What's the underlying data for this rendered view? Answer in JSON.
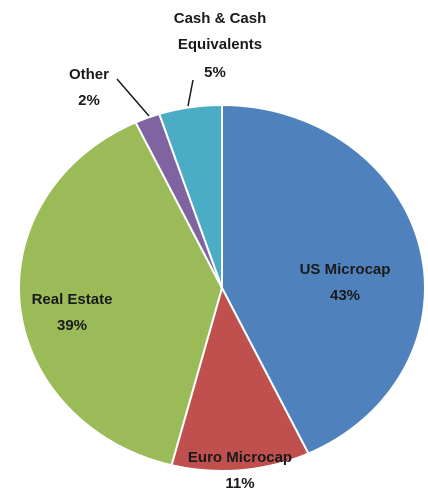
{
  "chart_data": {
    "type": "pie",
    "categories": [
      "US Microcap",
      "Euro Microcap",
      "Real Estate",
      "Other",
      "Cash & Cash Equivalents"
    ],
    "values": [
      43,
      11,
      39,
      2,
      5
    ],
    "value_labels": [
      "43%",
      "11%",
      "39%",
      "2%",
      "5%"
    ],
    "colors": [
      "#4f81bd",
      "#c0504d",
      "#9bbb59",
      "#8064a2",
      "#4bacc6"
    ]
  }
}
